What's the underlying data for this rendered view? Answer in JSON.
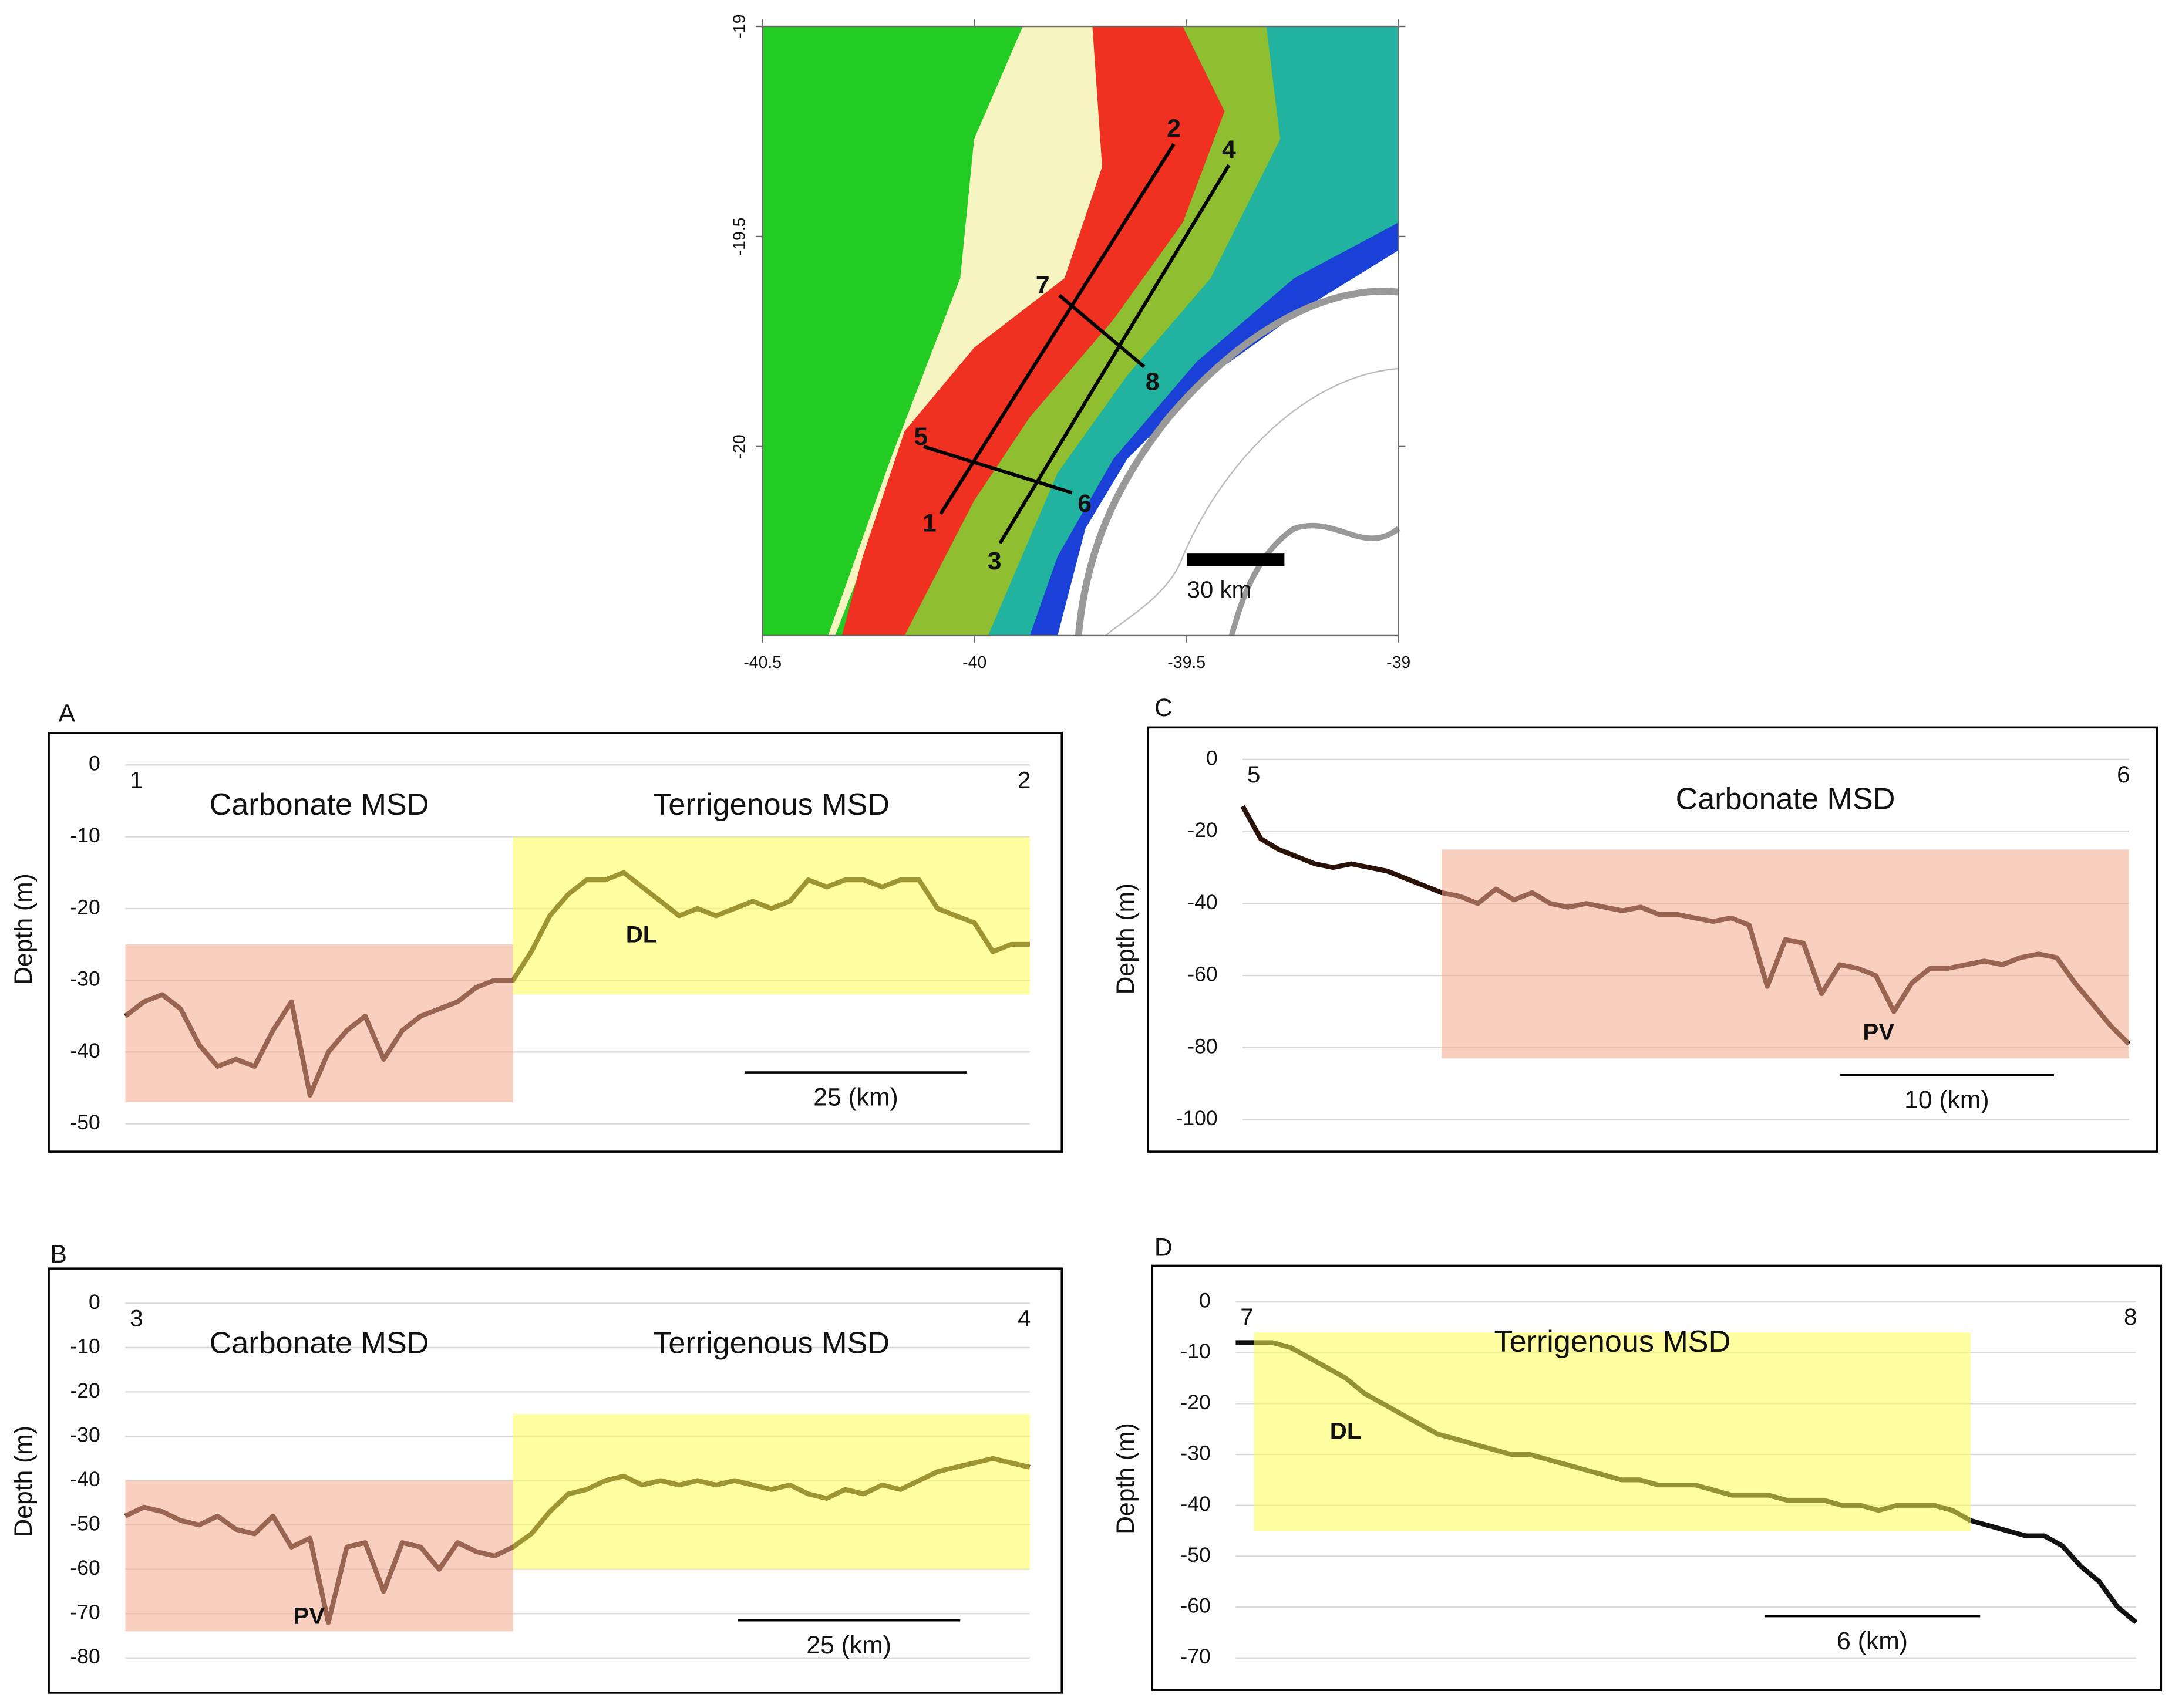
{
  "chart_data": [
    {
      "type": "map",
      "xlim": [
        -40.5,
        -39
      ],
      "xticks": [
        -40.5,
        -40,
        -39.5,
        -39
      ],
      "ylim": [
        -20.45,
        -19
      ],
      "yticks": [
        -19,
        -19.5,
        -20
      ],
      "points": [
        {
          "label": "1",
          "lon": -40.08,
          "lat": -20.16
        },
        {
          "label": "2",
          "lon": -39.53,
          "lat": -19.28
        },
        {
          "label": "3",
          "lon": -39.94,
          "lat": -20.23
        },
        {
          "label": "4",
          "lon": -39.4,
          "lat": -19.33
        },
        {
          "label": "5",
          "lon": -40.12,
          "lat": -20.0
        },
        {
          "label": "6",
          "lon": -39.77,
          "lat": -20.11
        },
        {
          "label": "7",
          "lon": -39.8,
          "lat": -19.64
        },
        {
          "label": "8",
          "lon": -39.6,
          "lat": -19.81
        }
      ],
      "scale_bar": "30 km"
    },
    {
      "type": "line",
      "panel": "A",
      "ylabel": "Depth (m)",
      "endpoints": [
        "1",
        "2"
      ],
      "color": "#2a1208",
      "values": [
        -35,
        -33,
        -32,
        -34,
        -39,
        -42,
        -41,
        -42,
        -37,
        -33,
        -46,
        -40,
        -37,
        -35,
        -41,
        -37,
        -35,
        -34,
        -33,
        -31,
        -30,
        -30,
        -26,
        -21,
        -18,
        -16,
        -16,
        -15,
        -17,
        -19,
        -21,
        -20,
        -21,
        -20,
        -19,
        -20,
        -19,
        -16,
        -17,
        -16,
        -16,
        -17,
        -16,
        -16,
        -20,
        -21,
        -22,
        -26,
        -25,
        -25
      ],
      "ylim": [
        -50,
        0
      ],
      "yticks": [
        0,
        -10,
        -20,
        -30,
        -40,
        -50
      ],
      "grid": true,
      "regions": [
        {
          "label": "Carbonate MSD",
          "color": "#f4a88c",
          "xrange": [
            0,
            21
          ],
          "yrange": [
            -47,
            -25
          ]
        },
        {
          "label": "Terrigenous MSD",
          "color": "#ffff55",
          "xrange": [
            21,
            49
          ],
          "yrange": [
            -32,
            -10
          ]
        }
      ],
      "annotations": [
        "DL"
      ],
      "scale_bar": "25 (km)"
    },
    {
      "type": "line",
      "panel": "B",
      "ylabel": "Depth (m)",
      "endpoints": [
        "3",
        "4"
      ],
      "color": "#2a1208",
      "values": [
        -48,
        -46,
        -47,
        -49,
        -50,
        -48,
        -51,
        -52,
        -48,
        -55,
        -53,
        -72,
        -55,
        -54,
        -65,
        -54,
        -55,
        -60,
        -54,
        -56,
        -57,
        -55,
        -52,
        -47,
        -43,
        -42,
        -40,
        -39,
        -41,
        -40,
        -41,
        -40,
        -41,
        -40,
        -41,
        -42,
        -41,
        -43,
        -44,
        -42,
        -43,
        -41,
        -42,
        -40,
        -38,
        -37,
        -36,
        -35,
        -36,
        -37
      ],
      "ylim": [
        -80,
        0
      ],
      "yticks": [
        0,
        -10,
        -20,
        -30,
        -40,
        -50,
        -60,
        -70,
        -80
      ],
      "grid": true,
      "regions": [
        {
          "label": "Carbonate MSD",
          "color": "#f4a88c",
          "xrange": [
            0,
            21
          ],
          "yrange": [
            -74,
            -40
          ]
        },
        {
          "label": "Terrigenous MSD",
          "color": "#ffff55",
          "xrange": [
            21,
            49
          ],
          "yrange": [
            -60,
            -25
          ]
        }
      ],
      "annotations": [
        "PV"
      ],
      "scale_bar": "25 (km)"
    },
    {
      "type": "line",
      "panel": "C",
      "ylabel": "Depth (m)",
      "endpoints": [
        "5",
        "6"
      ],
      "color": "#2a1208",
      "values": [
        -13,
        -22,
        -25,
        -27,
        -29,
        -30,
        -29,
        -30,
        -31,
        -33,
        -35,
        -37,
        -38,
        -40,
        -36,
        -39,
        -37,
        -40,
        -41,
        -40,
        -41,
        -42,
        -41,
        -43,
        -43,
        -44,
        -45,
        -44,
        -46,
        -63,
        -50,
        -51,
        -65,
        -57,
        -58,
        -60,
        -70,
        -62,
        -58,
        -58,
        -57,
        -56,
        -57,
        -55,
        -54,
        -55,
        -62,
        -68,
        -74,
        -79
      ],
      "ylim": [
        -100,
        0
      ],
      "yticks": [
        0,
        -20,
        -40,
        -60,
        -80,
        -100
      ],
      "grid": true,
      "regions": [
        {
          "label": "Carbonate MSD",
          "color": "#f4a88c",
          "xrange": [
            11,
            49
          ],
          "yrange": [
            -83,
            -25
          ]
        }
      ],
      "annotations": [
        "PV"
      ],
      "scale_bar": "10 (km)"
    },
    {
      "type": "line",
      "panel": "D",
      "ylabel": "Depth (m)",
      "endpoints": [
        "7",
        "8"
      ],
      "color": "#111111",
      "values": [
        -8,
        -8,
        -8,
        -9,
        -11,
        -13,
        -15,
        -18,
        -20,
        -22,
        -24,
        -26,
        -27,
        -28,
        -29,
        -30,
        -30,
        -31,
        -32,
        -33,
        -34,
        -35,
        -35,
        -36,
        -36,
        -36,
        -37,
        -38,
        -38,
        -38,
        -39,
        -39,
        -39,
        -40,
        -40,
        -41,
        -40,
        -40,
        -40,
        -41,
        -43,
        -44,
        -45,
        -46,
        -46,
        -48,
        -52,
        -55,
        -60,
        -63
      ],
      "ylim": [
        -70,
        0
      ],
      "yticks": [
        0,
        -10,
        -20,
        -30,
        -40,
        -50,
        -60,
        -70
      ],
      "grid": true,
      "regions": [
        {
          "label": "Terrigenous MSD",
          "color": "#ffff55",
          "xrange": [
            1,
            40
          ],
          "yrange": [
            -45,
            -6
          ]
        }
      ],
      "annotations": [
        "DL"
      ],
      "scale_bar": "6 (km)"
    }
  ]
}
